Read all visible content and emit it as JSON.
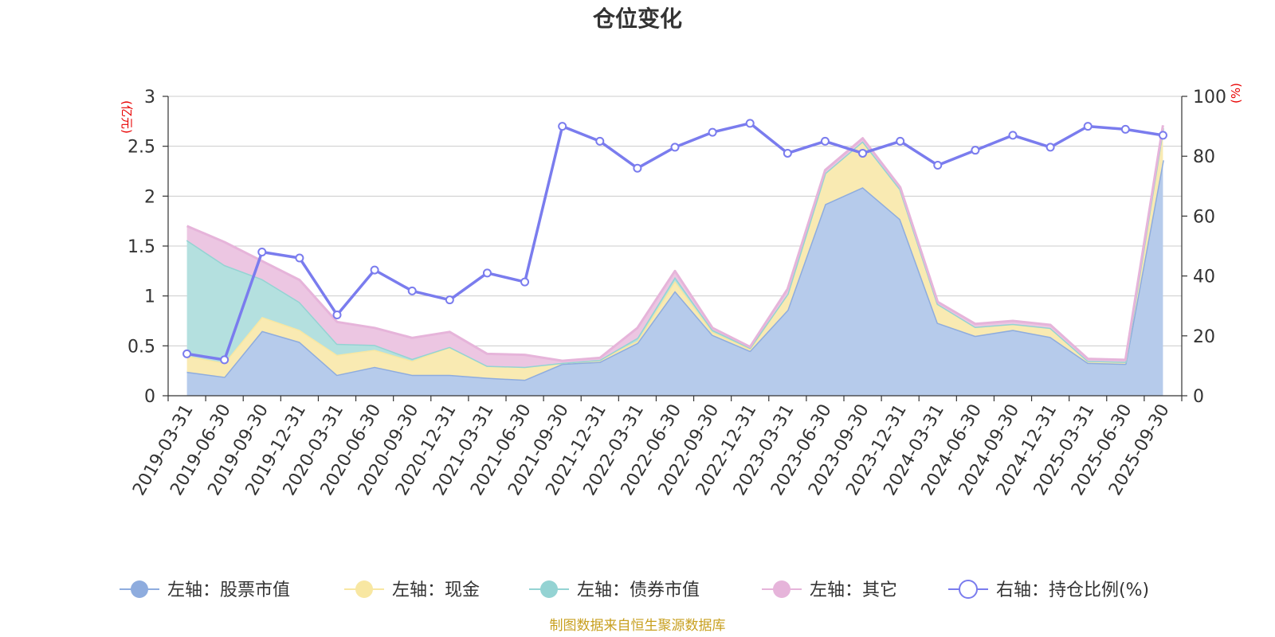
{
  "chart_data": {
    "type": "area",
    "title": "仓位变化",
    "y_left_unit": "(亿元)",
    "y_right_unit": "(%)",
    "y_left_range": [
      0,
      3
    ],
    "y_left_ticks": [
      "0",
      "0.5",
      "1",
      "1.5",
      "2",
      "2.5",
      "3"
    ],
    "y_right_range": [
      0,
      100
    ],
    "y_right_ticks": [
      "0",
      "20",
      "40",
      "60",
      "80",
      "100"
    ],
    "categories": [
      "2019-03-31",
      "2019-06-30",
      "2019-09-30",
      "2019-12-31",
      "2020-03-31",
      "2020-06-30",
      "2020-09-30",
      "2020-12-31",
      "2021-03-31",
      "2021-06-30",
      "2021-09-30",
      "2021-12-31",
      "2022-03-31",
      "2022-06-30",
      "2022-09-30",
      "2022-12-31",
      "2023-03-31",
      "2023-06-30",
      "2023-09-30",
      "2023-12-31",
      "2024-03-31",
      "2024-06-30",
      "2024-09-30",
      "2024-12-31",
      "2025-03-31",
      "2025-06-30",
      "2025-09-30"
    ],
    "series": [
      {
        "name": "左轴：股票市值",
        "axis": "left",
        "stack": true,
        "color": "#8eacde",
        "fill": "#b6cbeb",
        "values": [
          0.24,
          0.19,
          0.65,
          0.54,
          0.21,
          0.29,
          0.21,
          0.21,
          0.18,
          0.16,
          0.32,
          0.34,
          0.53,
          1.05,
          0.61,
          0.45,
          0.86,
          1.92,
          2.09,
          1.77,
          0.73,
          0.6,
          0.66,
          0.59,
          0.33,
          0.32,
          2.36
        ]
      },
      {
        "name": "左轴：现金",
        "axis": "left",
        "stack": true,
        "color": "#f8e7a2",
        "fill": "#f9eab2",
        "values": [
          0.16,
          0.14,
          0.14,
          0.12,
          0.2,
          0.17,
          0.14,
          0.28,
          0.12,
          0.13,
          0.01,
          0.02,
          0.02,
          0.1,
          0.03,
          0.02,
          0.16,
          0.31,
          0.46,
          0.3,
          0.19,
          0.09,
          0.06,
          0.09,
          0.02,
          0.02,
          0.32
        ]
      },
      {
        "name": "左轴：债券市值",
        "axis": "left",
        "stack": true,
        "color": "#94d3d3",
        "fill": "#b4e0df",
        "values": [
          1.16,
          0.98,
          0.38,
          0.28,
          0.11,
          0.05,
          0.02,
          0.0,
          0.0,
          0.0,
          0.0,
          0.0,
          0.03,
          0.04,
          0.02,
          0.01,
          0.0,
          0.0,
          0.0,
          0.0,
          0.0,
          0.0,
          0.0,
          0.0,
          0.0,
          0.0,
          0.0
        ]
      },
      {
        "name": "左轴：其它",
        "axis": "left",
        "stack": true,
        "color": "#e6b4da",
        "fill": "#ecc6e2",
        "values": [
          0.14,
          0.23,
          0.18,
          0.22,
          0.22,
          0.17,
          0.21,
          0.15,
          0.12,
          0.12,
          0.02,
          0.02,
          0.1,
          0.06,
          0.02,
          0.01,
          0.05,
          0.03,
          0.03,
          0.02,
          0.02,
          0.03,
          0.03,
          0.03,
          0.02,
          0.02,
          0.03
        ]
      },
      {
        "name": "右轴：持仓比例(%)",
        "axis": "right",
        "stack": false,
        "color": "#7a7cee",
        "values": [
          14,
          12,
          48,
          46,
          27,
          42,
          35,
          32,
          41,
          38,
          90,
          85,
          76,
          83,
          88,
          91,
          81,
          85,
          81,
          85,
          77,
          82,
          87,
          83,
          90,
          89,
          87
        ]
      }
    ]
  },
  "footer": {
    "source": "制图数据来自恒生聚源数据库"
  }
}
